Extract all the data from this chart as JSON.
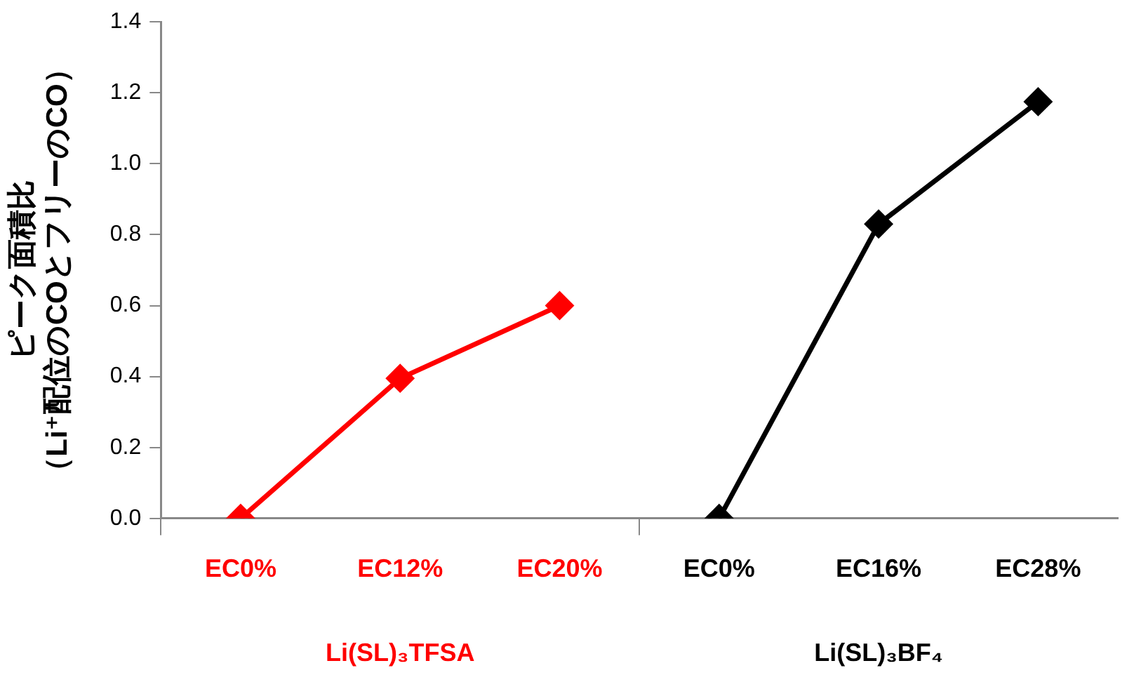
{
  "chart_data": {
    "type": "line",
    "ylabel": "ピーク面積比（Li⁺配位のCOとフリーのCO）",
    "categories": [
      "EC0%",
      "EC12%",
      "EC20%",
      "EC0%",
      "EC16%",
      "EC28%"
    ],
    "series": [
      {
        "name": "Li(SL)₃TFSA",
        "color": "#ff0000",
        "values": [
          0,
          0.395,
          0.6,
          null,
          null,
          null
        ]
      },
      {
        "name": "Li(SL)₃BF₄",
        "color": "#000000",
        "values": [
          null,
          null,
          null,
          0,
          0.83,
          1.175
        ]
      }
    ],
    "ylim": [
      0,
      1.4
    ],
    "yticks": [
      {
        "value": 0,
        "label": "0.0"
      },
      0.2,
      0.4,
      0.6,
      0.8,
      {
        "value": 1,
        "label": "1.0"
      },
      1.2,
      1.4
    ],
    "grid": false,
    "legend": false,
    "marker": "diamond",
    "line_style": "solid"
  }
}
